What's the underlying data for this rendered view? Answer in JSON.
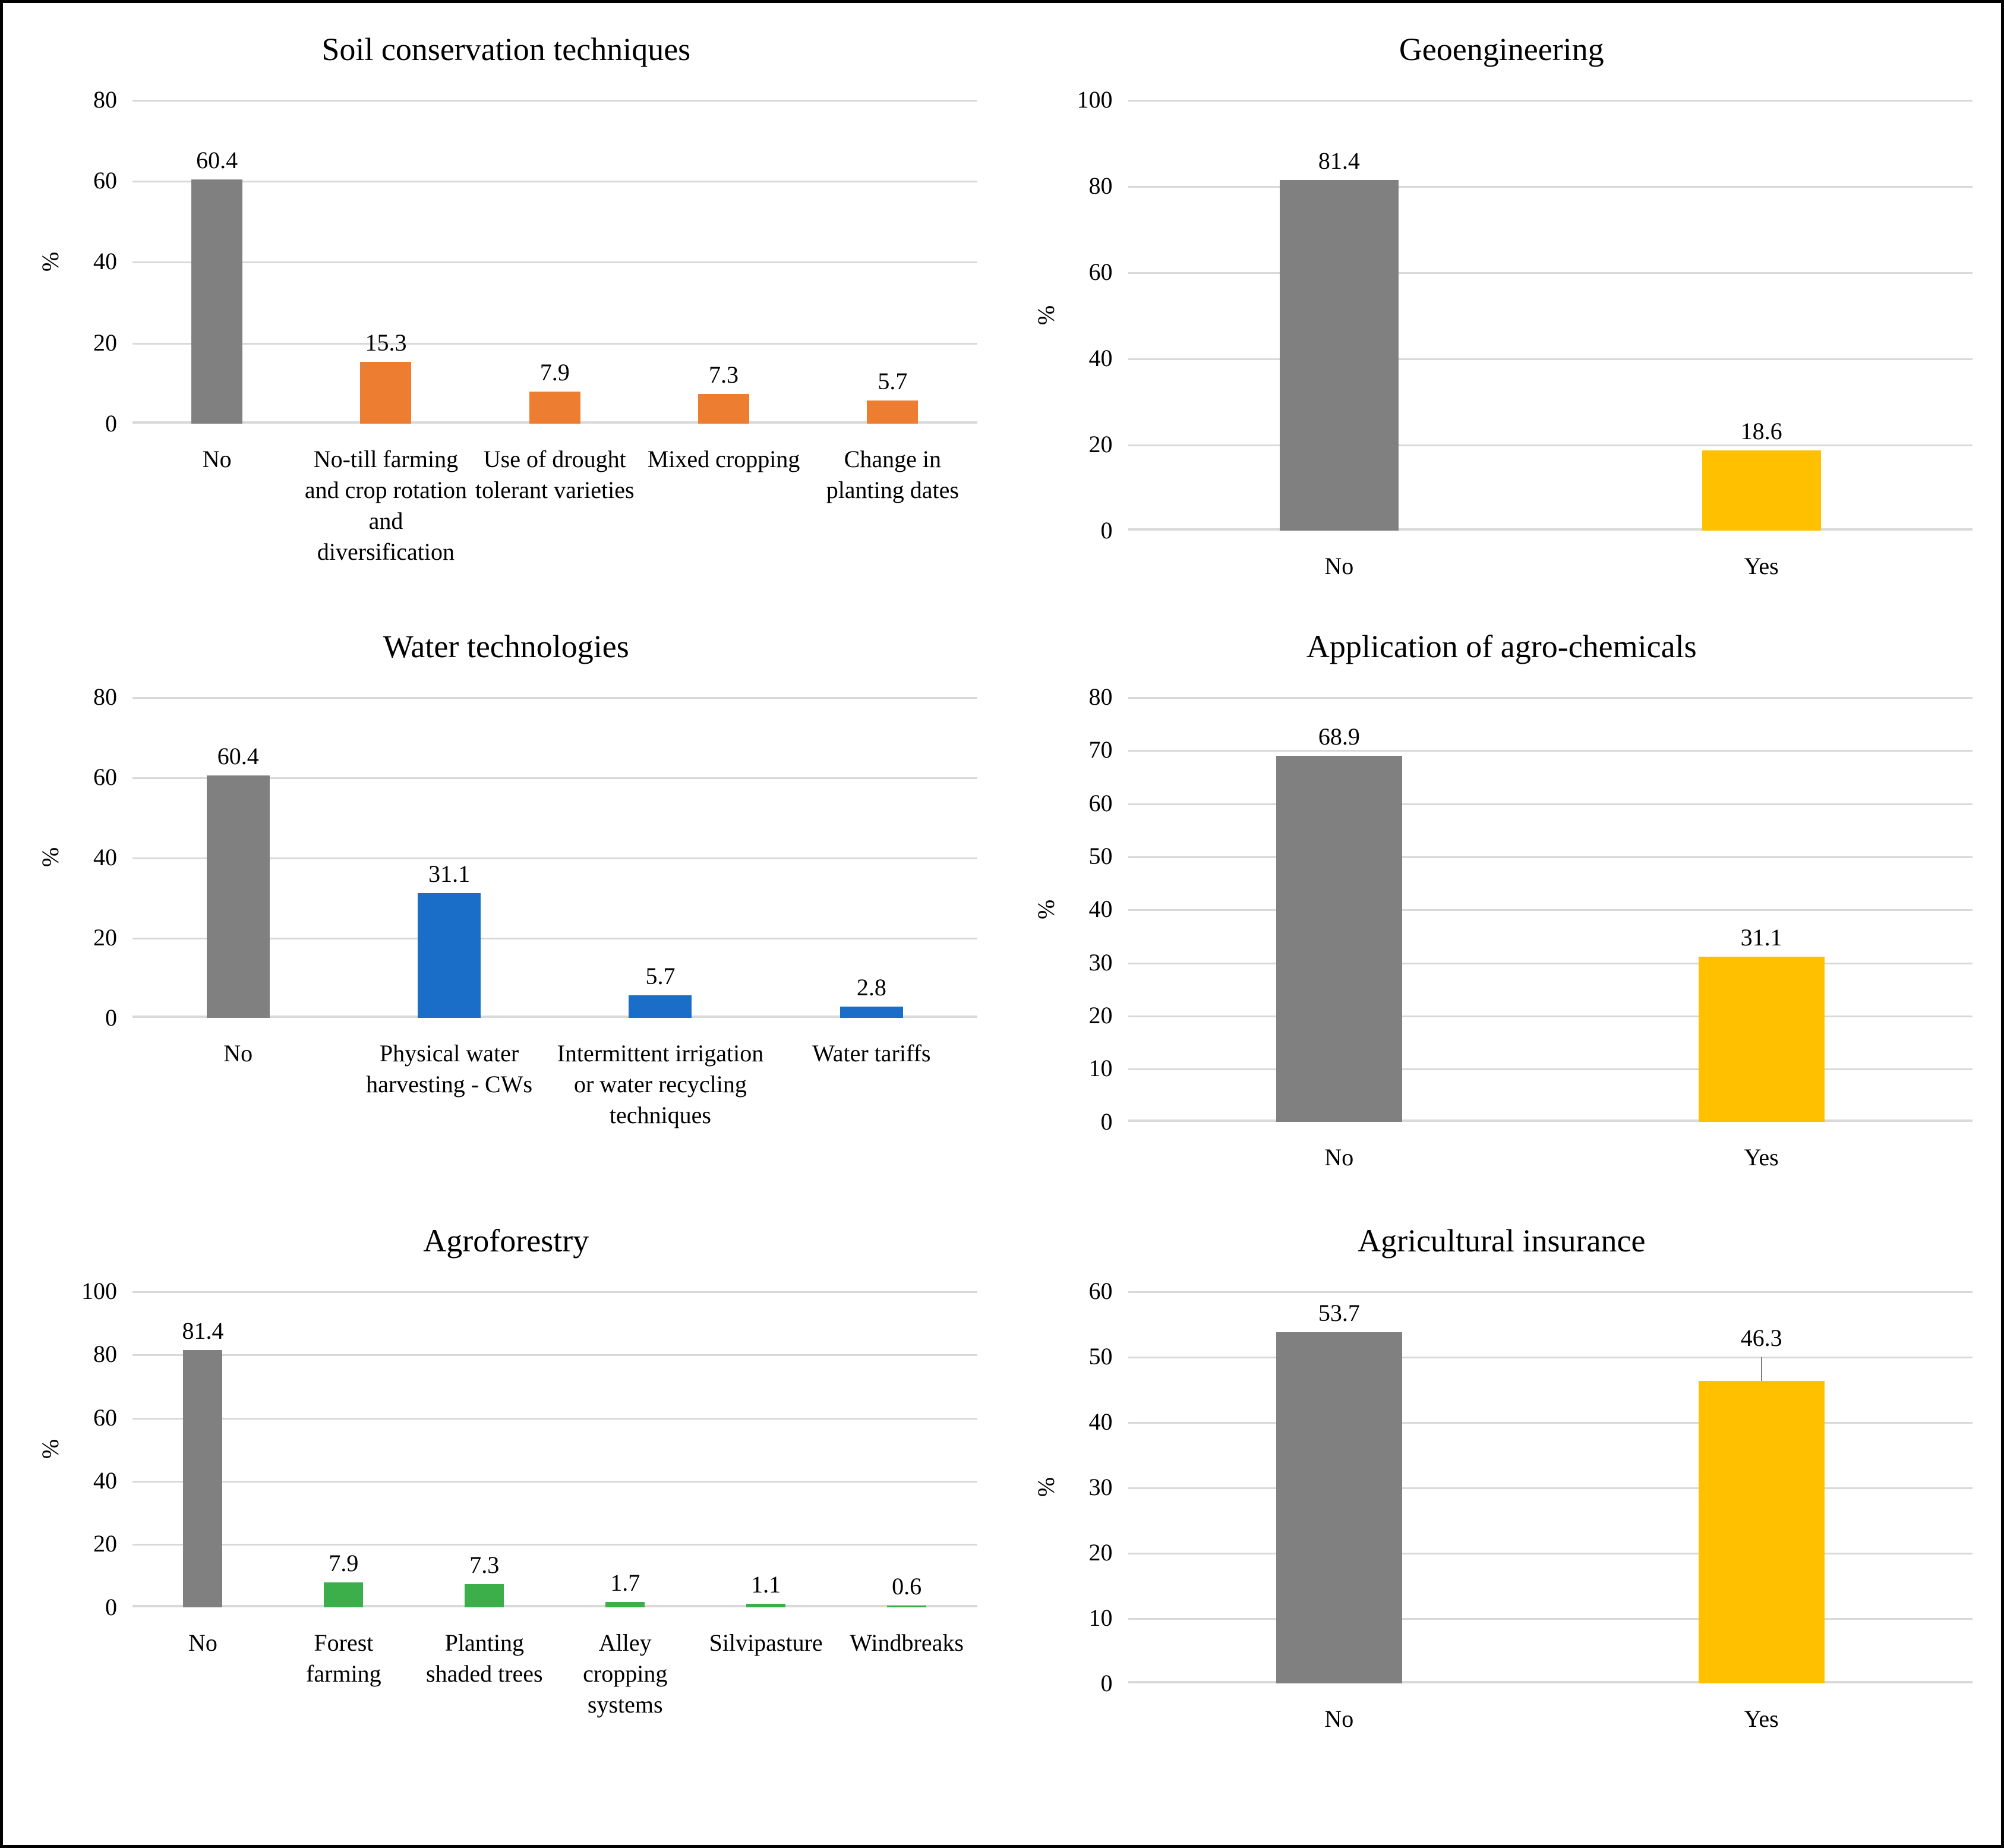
{
  "figure": {
    "background": "#ffffff",
    "border_color": "#000000",
    "gridline_color": "#d9d9d9"
  },
  "colors": {
    "no_response_gray": "#808080",
    "soil_orange": "#ED7D31",
    "water_blue": "#1B6EC8",
    "agroforestry_green": "#3CAE4A",
    "yes_gold": "#FFC000"
  },
  "chart_data": [
    {
      "type": "bar",
      "title": "Soil conservation techniques",
      "ylabel": "%",
      "ylim": [
        0,
        80
      ],
      "grid": true,
      "legend": false,
      "yticks": [
        "80",
        "60",
        "40",
        "20",
        "0"
      ],
      "ytick_values": [
        80,
        60,
        40,
        20,
        0
      ],
      "categories": [
        "No",
        "No-till farming and crop rotation and diversification",
        "Use of drought tolerant varieties",
        "Mixed cropping",
        "Change in planting dates"
      ],
      "values": [
        60.4,
        15.3,
        7.9,
        7.3,
        5.7
      ],
      "value_labels": [
        "60.4",
        "15.3",
        "7.9",
        "7.3",
        "5.7"
      ],
      "bar_colors": [
        "#808080",
        "#ED7D31",
        "#ED7D31",
        "#ED7D31",
        "#ED7D31"
      ]
    },
    {
      "type": "bar",
      "title": "Geoengineering",
      "ylabel": "%",
      "ylim": [
        0,
        100
      ],
      "grid": true,
      "legend": false,
      "yticks": [
        "100",
        "80",
        "60",
        "40",
        "20",
        "0"
      ],
      "ytick_values": [
        100,
        80,
        60,
        40,
        20,
        0
      ],
      "categories": [
        "No",
        "Yes"
      ],
      "values": [
        81.4,
        18.6
      ],
      "value_labels": [
        "81.4",
        "18.6"
      ],
      "bar_colors": [
        "#808080",
        "#FFC000"
      ]
    },
    {
      "type": "bar",
      "title": "Water technologies",
      "ylabel": "%",
      "ylim": [
        0,
        80
      ],
      "grid": true,
      "legend": false,
      "yticks": [
        "80",
        "60",
        "40",
        "20",
        "0"
      ],
      "ytick_values": [
        80,
        60,
        40,
        20,
        0
      ],
      "categories": [
        "No",
        "Physical water harvesting - CWs",
        "Intermittent irrigation or water recycling techniques",
        "Water tariffs"
      ],
      "values": [
        60.4,
        31.1,
        5.7,
        2.8
      ],
      "value_labels": [
        "60.4",
        "31.1",
        "5.7",
        "2.8"
      ],
      "bar_colors": [
        "#808080",
        "#1B6EC8",
        "#1B6EC8",
        "#1B6EC8"
      ]
    },
    {
      "type": "bar",
      "title": "Application of agro-chemicals",
      "ylabel": "%",
      "ylim": [
        0,
        80
      ],
      "grid": true,
      "legend": false,
      "yticks": [
        "80",
        "70",
        "60",
        "50",
        "40",
        "30",
        "20",
        "10",
        "0"
      ],
      "ytick_values": [
        80,
        70,
        60,
        50,
        40,
        30,
        20,
        10,
        0
      ],
      "categories": [
        "No",
        "Yes"
      ],
      "values": [
        68.9,
        31.1
      ],
      "value_labels": [
        "68.9",
        "31.1"
      ],
      "bar_colors": [
        "#808080",
        "#FFC000"
      ]
    },
    {
      "type": "bar",
      "title": "Agroforestry",
      "ylabel": "%",
      "ylim": [
        0,
        100
      ],
      "grid": true,
      "legend": false,
      "yticks": [
        "100",
        "80",
        "60",
        "40",
        "20",
        "0"
      ],
      "ytick_values": [
        100,
        80,
        60,
        40,
        20,
        0
      ],
      "categories": [
        "No",
        "Forest farming",
        "Planting shaded trees",
        "Alley cropping systems",
        "Silvipasture",
        "Windbreaks"
      ],
      "values": [
        81.4,
        7.9,
        7.3,
        1.7,
        1.1,
        0.6
      ],
      "value_labels": [
        "81.4",
        "7.9",
        "7.3",
        "1.7",
        "1.1",
        "0.6"
      ],
      "bar_colors": [
        "#808080",
        "#3CAE4A",
        "#3CAE4A",
        "#3CAE4A",
        "#3CAE4A",
        "#3CAE4A"
      ]
    },
    {
      "type": "bar",
      "title": "Agricultural insurance",
      "ylabel": "%",
      "ylim": [
        0,
        60
      ],
      "grid": true,
      "legend": false,
      "yticks": [
        "60",
        "50",
        "40",
        "30",
        "20",
        "10",
        "0"
      ],
      "ytick_values": [
        60,
        50,
        40,
        30,
        20,
        10,
        0
      ],
      "categories": [
        "No",
        "Yes"
      ],
      "values": [
        53.7,
        46.3
      ],
      "value_labels": [
        "53.7",
        "46.3"
      ],
      "bar_colors": [
        "#808080",
        "#FFC000"
      ],
      "label_leaders": [
        false,
        true
      ]
    }
  ]
}
